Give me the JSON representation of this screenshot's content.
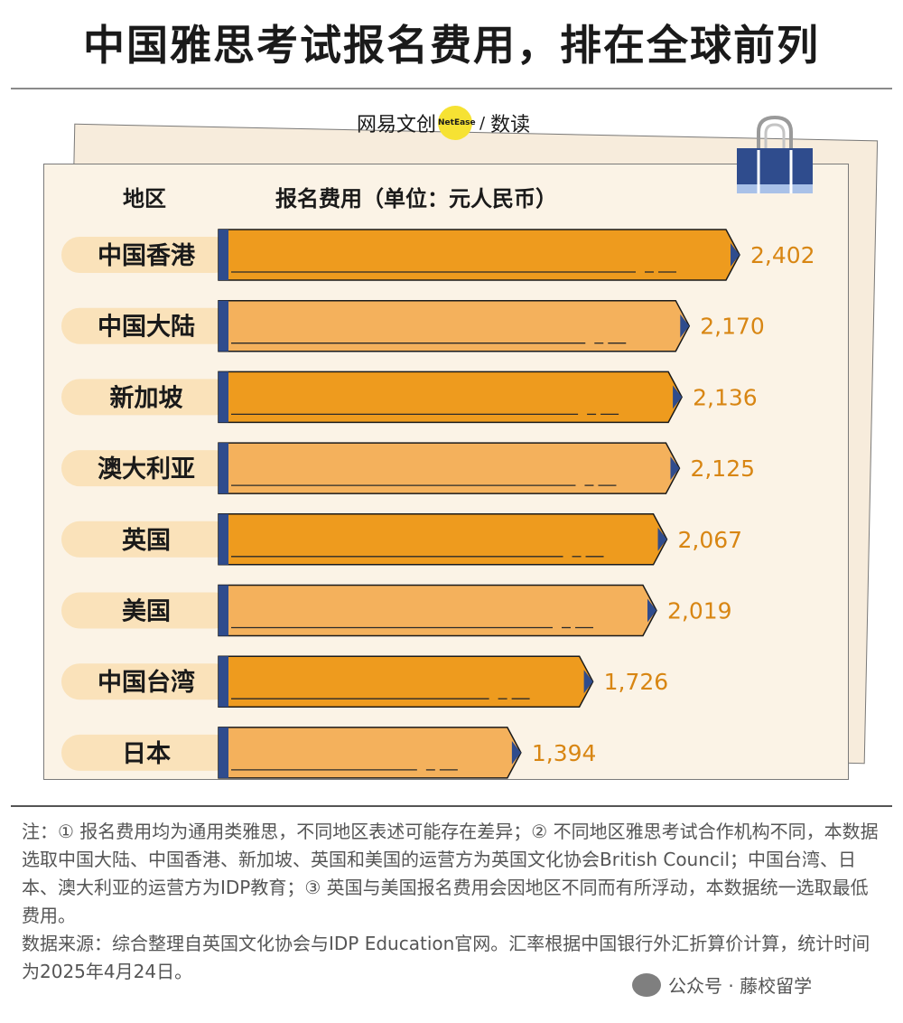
{
  "title": "中国雅思考试报名费用，排在全球前列",
  "brand": {
    "left": "网易文创",
    "badge": "NetEase",
    "separator": "/",
    "right": "数读"
  },
  "chart_data": {
    "type": "bar",
    "orientation": "horizontal",
    "category_header": "地区",
    "value_header": "报名费用（单位：元人民币）",
    "categories": [
      "中国香港",
      "中国大陆",
      "新加坡",
      "澳大利亚",
      "英国",
      "美国",
      "中国台湾",
      "日本"
    ],
    "values": [
      2402,
      2170,
      2136,
      2125,
      2067,
      2019,
      1726,
      1394
    ],
    "value_labels": [
      "2,402",
      "2,170",
      "2,136",
      "2,125",
      "2,067",
      "2,019",
      "1,726",
      "1,394"
    ],
    "colors": {
      "bar_dark": "#ee9b1e",
      "bar_light": "#f4b15c",
      "label_pill": "#fae2ba",
      "value_text": "#d88613",
      "pencil_tip": "#2f4c8d",
      "pencil_end": "#2f4c8d"
    },
    "grid": false
  },
  "notes": {
    "note": "注：① 报名费用均为通用类雅思，不同地区表述可能存在差异；② 不同地区雅思考试合作机构不同，本数据选取中国大陆、中国香港、新加坡、英国和美国的运营方为英国文化协会British Council；中国台湾、日本、澳大利亚的运营方为IDP教育；③ 英国与美国报名费用会因地区不同而有所浮动，本数据统一选取最低费用。",
    "source": "数据来源：综合整理自英国文化协会与IDP Education官网。汇率根据中国银行外汇折算价计算，统计时间为2025年4月24日。"
  },
  "watermark": "公众号 · 藤校留学",
  "icons": [
    "binder-clip-icon",
    "wechat-icon"
  ]
}
